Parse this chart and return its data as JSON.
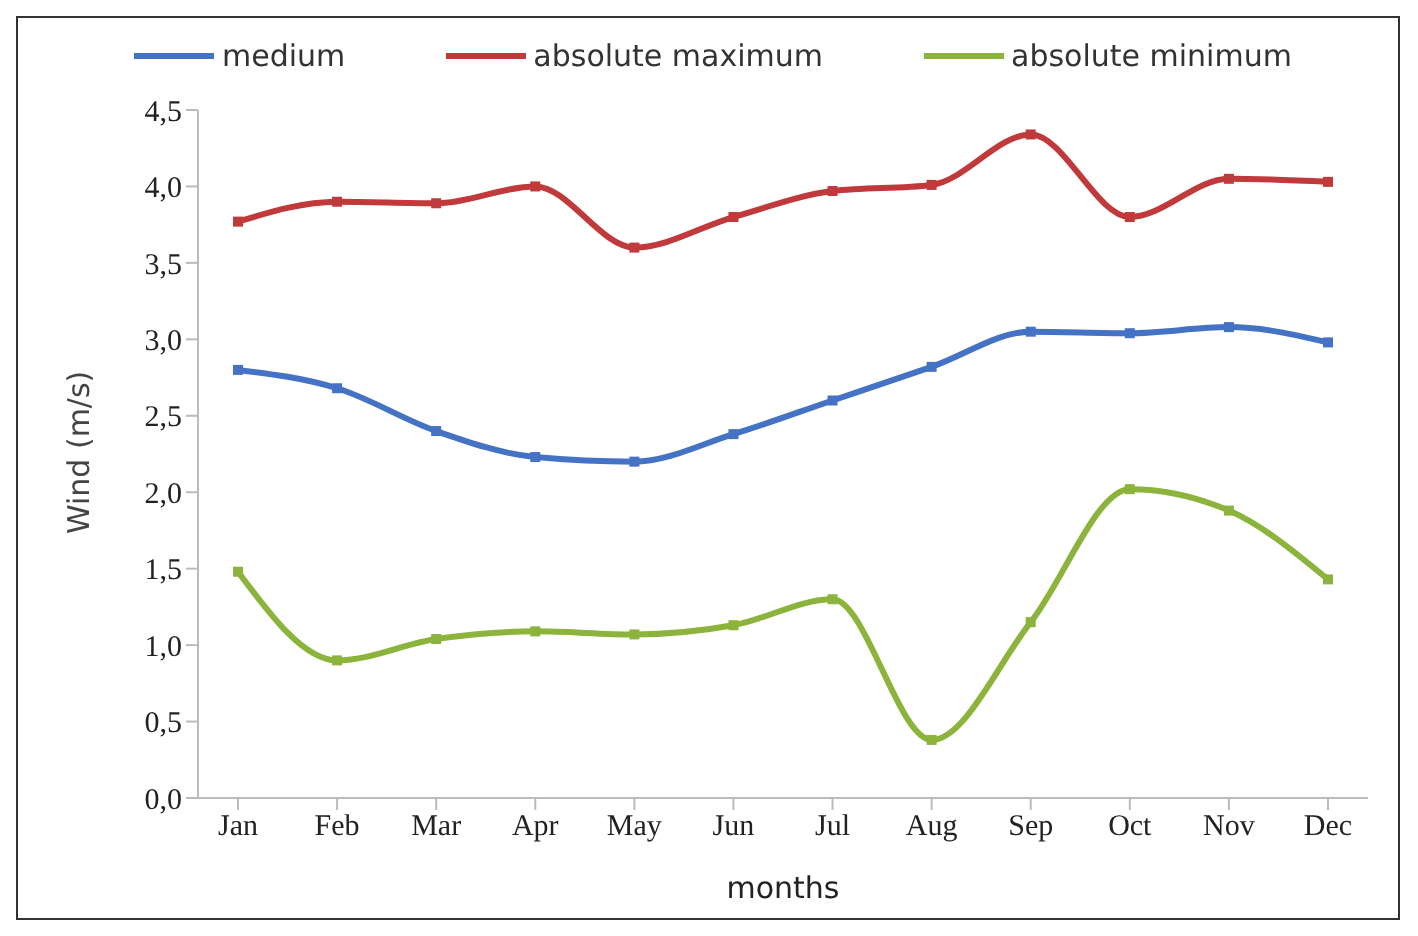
{
  "chart_data": {
    "type": "line",
    "xlabel": "months",
    "ylabel": "Wind (m/s)",
    "categories": [
      "Jan",
      "Feb",
      "Mar",
      "Apr",
      "May",
      "Jun",
      "Jul",
      "Aug",
      "Sep",
      "Oct",
      "Nov",
      "Dec"
    ],
    "series": [
      {
        "name": "medium",
        "color": "#4472c4",
        "values": [
          2.8,
          2.68,
          2.4,
          2.23,
          2.2,
          2.38,
          2.6,
          2.82,
          3.05,
          3.04,
          3.08,
          2.98
        ]
      },
      {
        "name": "absolute maximum",
        "color": "#c0393b",
        "values": [
          3.77,
          3.9,
          3.89,
          4.0,
          3.6,
          3.8,
          3.97,
          4.01,
          4.34,
          3.8,
          4.05,
          4.03
        ]
      },
      {
        "name": "absolute minimum",
        "color": "#8cb43c",
        "values": [
          1.48,
          0.9,
          1.04,
          1.09,
          1.07,
          1.13,
          1.3,
          0.38,
          1.15,
          2.02,
          1.88,
          1.43
        ]
      }
    ],
    "ylim": [
      0,
      4.5
    ],
    "yticks": [
      {
        "value": 0,
        "label": "0,0"
      },
      {
        "value": 0.5,
        "label": "0,5"
      },
      {
        "value": 1,
        "label": "1,0"
      },
      {
        "value": 1.5,
        "label": "1,5"
      },
      {
        "value": 2,
        "label": "2,0"
      },
      {
        "value": 2.5,
        "label": "2,5"
      },
      {
        "value": 3,
        "label": "3,0"
      },
      {
        "value": 3.5,
        "label": "3,5"
      },
      {
        "value": 4,
        "label": "4,0"
      },
      {
        "value": 4.5,
        "label": "4,5"
      }
    ],
    "grid": false,
    "legend": "top",
    "marker": "square",
    "line_style": "solid"
  }
}
